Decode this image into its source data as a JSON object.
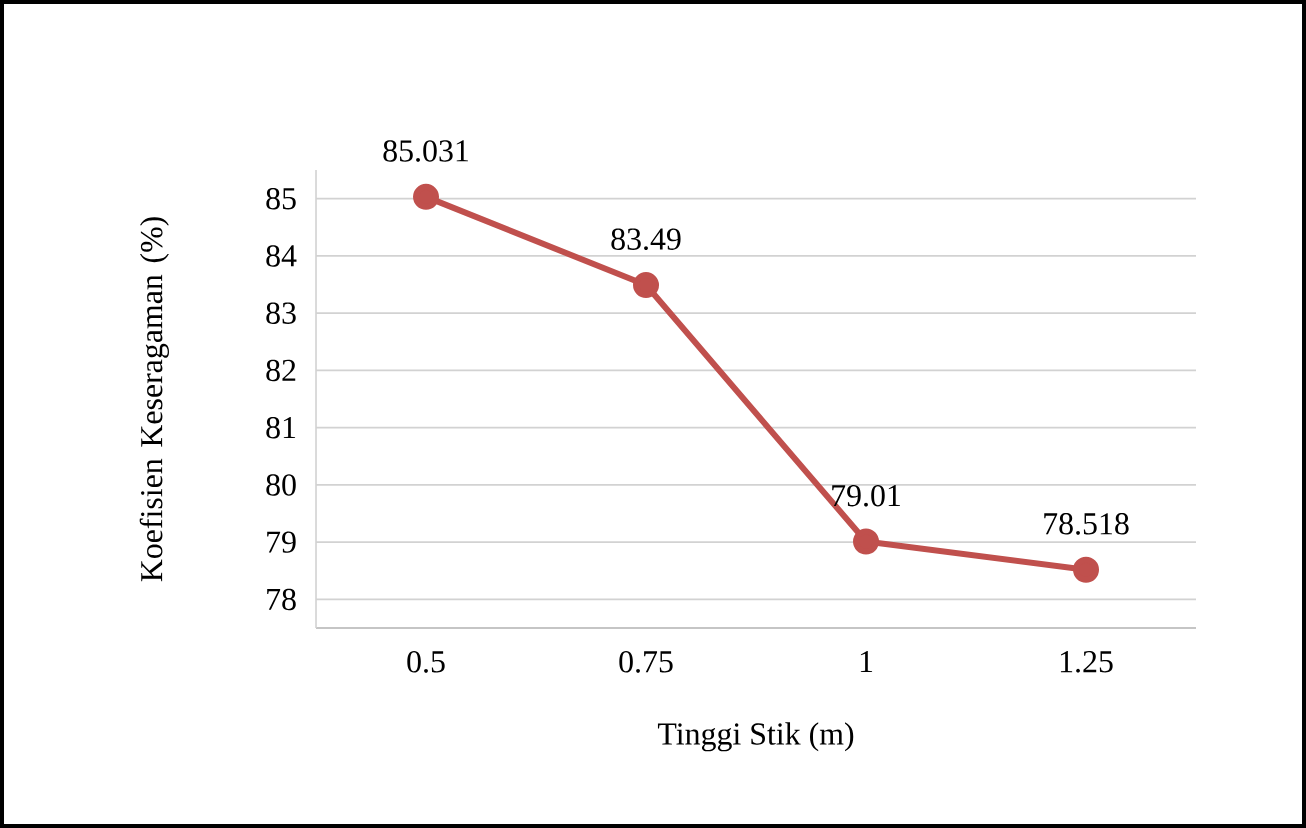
{
  "chart_data": {
    "type": "line",
    "xlabel": "Tinggi Stik (m)",
    "ylabel": "Koefisien Keseragaman (%)",
    "categories": [
      "0.5",
      "0.75",
      "1",
      "1.25"
    ],
    "series": [
      {
        "color": "#c0504d",
        "values": [
          85.031,
          83.49,
          79.01,
          78.518
        ]
      }
    ],
    "ylim": [
      77.5,
      85.5
    ],
    "yticks": [
      78,
      79,
      80,
      81,
      82,
      83,
      84,
      85
    ],
    "grid": "y",
    "data_labels": true,
    "marker": "circle",
    "line_style": "solid"
  }
}
